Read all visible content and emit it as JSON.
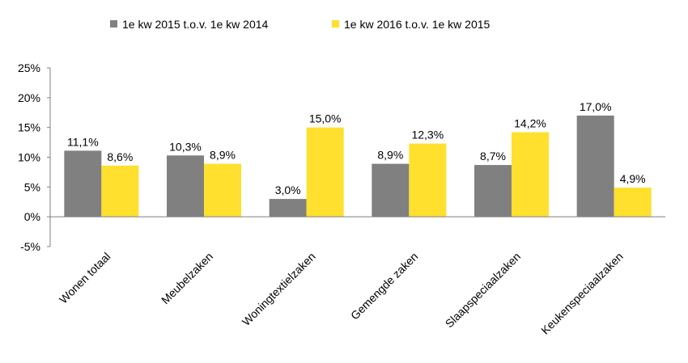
{
  "chart_data": {
    "type": "bar",
    "title": "",
    "xlabel": "",
    "ylabel": "",
    "categories": [
      "Wonen totaal",
      "Meubelzaken",
      "Woningtextielzaken",
      "Gemengde zaken",
      "Slaapspeciaalzaken",
      "Keukenspeciaalzaken"
    ],
    "series": [
      {
        "name": "1e kw 2015 t.o.v. 1e kw 2014",
        "color": "#808080",
        "values": [
          11.1,
          10.3,
          3.0,
          8.9,
          8.7,
          17.0
        ],
        "labels": [
          "11,1%",
          "10,3%",
          "3,0%",
          "8,9%",
          "8,7%",
          "17,0%"
        ]
      },
      {
        "name": "1e kw 2016 t.o.v. 1e kw 2015",
        "color": "#FFE02E",
        "values": [
          8.6,
          8.9,
          15.0,
          12.3,
          14.2,
          4.9
        ],
        "labels": [
          "8,6%",
          "8,9%",
          "15,0%",
          "12,3%",
          "14,2%",
          "4,9%"
        ]
      }
    ],
    "ylim": [
      -5,
      25
    ],
    "yticks": [
      -5,
      0,
      5,
      10,
      15,
      20,
      25
    ],
    "ytick_labels": [
      "-5%",
      "0%",
      "5%",
      "10%",
      "15%",
      "20%",
      "25%"
    ],
    "grid": false,
    "legend": "top-left"
  }
}
